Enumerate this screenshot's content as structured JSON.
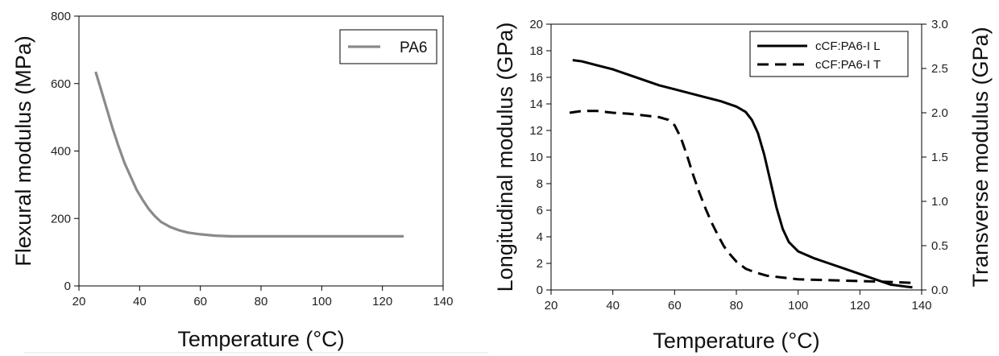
{
  "chart_data": [
    {
      "type": "line",
      "xlabel": "Temperature (°C)",
      "ylabel": "Flexural modulus (MPa)",
      "xlim": [
        20,
        140
      ],
      "ylim": [
        0,
        800
      ],
      "xticks": [
        20,
        40,
        60,
        80,
        100,
        120,
        140
      ],
      "yticks": [
        0,
        200,
        400,
        600,
        800
      ],
      "grid": false,
      "legend_position": "top-right",
      "colors": {
        "PA6": "#8a8a8a"
      },
      "series": [
        {
          "name": "PA6",
          "x": [
            25.5,
            27,
            29,
            31,
            33,
            35,
            37,
            39,
            41,
            43,
            45,
            47,
            50,
            53,
            56,
            60,
            65,
            70,
            80,
            90,
            100,
            110,
            120,
            127
          ],
          "y": [
            635,
            590,
            530,
            470,
            415,
            365,
            325,
            285,
            255,
            228,
            207,
            190,
            175,
            165,
            158,
            153,
            149,
            147,
            147,
            147,
            147,
            147,
            147,
            147
          ]
        }
      ]
    },
    {
      "type": "line",
      "xlabel": "Temperature (°C)",
      "ylabel": "Longitudinal modulus (GPa)",
      "y2label": "Transverse modulus (GPa)",
      "xlim": [
        20,
        140
      ],
      "ylim": [
        0,
        20
      ],
      "y2lim": [
        0,
        3.0
      ],
      "xticks": [
        20,
        40,
        60,
        80,
        100,
        120,
        140
      ],
      "yticks": [
        0,
        2,
        4,
        6,
        8,
        10,
        12,
        14,
        16,
        18,
        20
      ],
      "y2ticks": [
        "0.0",
        "0.5",
        "1.0",
        "1.5",
        "2.0",
        "2.5",
        "3.0"
      ],
      "grid": false,
      "legend_position": "top-right",
      "series": [
        {
          "name": "cCF:PA6-I L",
          "axis": "left",
          "style": "solid",
          "x": [
            27,
            30,
            35,
            40,
            45,
            50,
            55,
            60,
            65,
            70,
            75,
            80,
            83,
            85,
            87,
            89,
            91,
            93,
            95,
            97,
            100,
            105,
            110,
            115,
            120,
            125,
            130,
            135,
            137
          ],
          "y": [
            17.3,
            17.2,
            16.9,
            16.6,
            16.2,
            15.8,
            15.4,
            15.1,
            14.8,
            14.5,
            14.2,
            13.8,
            13.4,
            12.8,
            11.8,
            10.2,
            8.2,
            6.2,
            4.6,
            3.6,
            2.9,
            2.4,
            2.0,
            1.6,
            1.2,
            0.8,
            0.4,
            0.25,
            0.2
          ]
        },
        {
          "name": "cCF:PA6-I T",
          "axis": "right",
          "style": "dashed",
          "x": [
            26,
            30,
            35,
            40,
            45,
            50,
            55,
            58,
            60,
            62,
            64,
            66,
            68,
            70,
            72,
            74,
            76,
            78,
            80,
            83,
            86,
            90,
            95,
            100,
            110,
            120,
            130,
            137
          ],
          "y": [
            2.0,
            2.02,
            2.02,
            2.0,
            1.99,
            1.97,
            1.95,
            1.92,
            1.86,
            1.72,
            1.52,
            1.3,
            1.1,
            0.92,
            0.76,
            0.62,
            0.49,
            0.4,
            0.32,
            0.24,
            0.2,
            0.16,
            0.14,
            0.12,
            0.11,
            0.1,
            0.09,
            0.08
          ]
        }
      ]
    }
  ]
}
